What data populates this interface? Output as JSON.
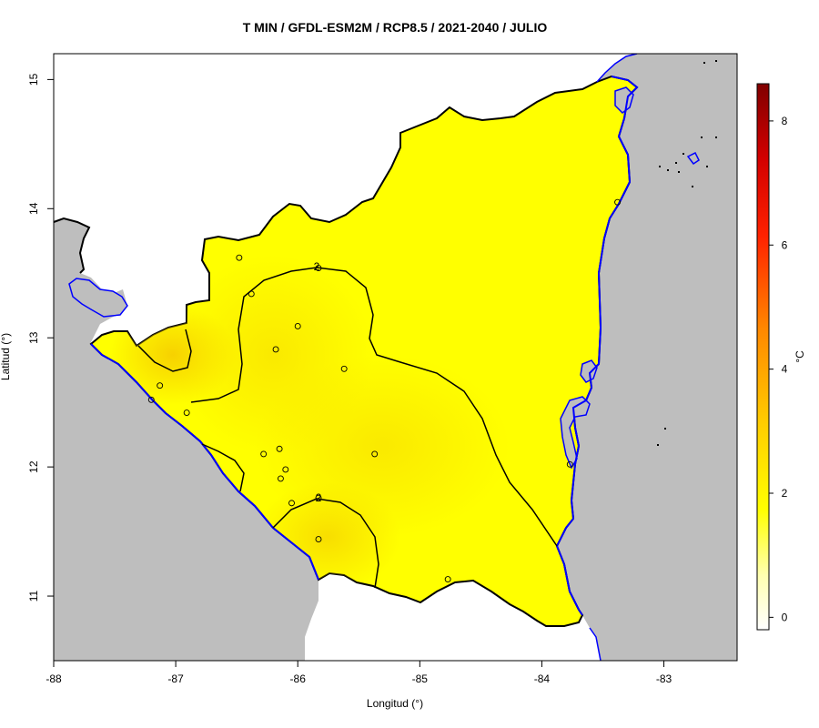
{
  "title": "T MIN / GFDL-ESM2M / RCP8.5 / 2021-2040 / JULIO",
  "xlabel": "Longitud (°)",
  "ylabel": "Latitud (°)",
  "x_ticks": [
    "-88",
    "-87",
    "-86",
    "-85",
    "-84",
    "-83"
  ],
  "y_ticks": [
    "11",
    "12",
    "13",
    "14",
    "15"
  ],
  "colorbar": {
    "unit": "°C",
    "ticks": [
      "0",
      "2",
      "4",
      "6",
      "8"
    ],
    "range": [
      -0.2,
      8.6
    ]
  },
  "contour_labels": [
    "2",
    "2"
  ],
  "colors": {
    "ocean": "#bebebe",
    "land": "#ffff00",
    "warm_core": "#f7d800",
    "water_border": "#0000ff",
    "lake": "#b0b4d0"
  },
  "chart_data": {
    "type": "heatmap",
    "variable": "T MIN",
    "xlim": [
      -88,
      -82.4
    ],
    "ylim": [
      10.5,
      15.2
    ],
    "contour_levels": [
      2
    ],
    "stations": [
      {
        "lon": -86.48,
        "lat": 13.62
      },
      {
        "lon": -86.38,
        "lat": 13.34
      },
      {
        "lon": -85.83,
        "lat": 13.54
      },
      {
        "lon": -86.0,
        "lat": 13.09
      },
      {
        "lon": -86.18,
        "lat": 12.91
      },
      {
        "lon": -85.62,
        "lat": 12.76
      },
      {
        "lon": -87.13,
        "lat": 12.63
      },
      {
        "lon": -87.2,
        "lat": 12.52
      },
      {
        "lon": -86.91,
        "lat": 12.42
      },
      {
        "lon": -86.28,
        "lat": 12.1
      },
      {
        "lon": -86.15,
        "lat": 12.14
      },
      {
        "lon": -86.1,
        "lat": 11.98
      },
      {
        "lon": -86.14,
        "lat": 11.91
      },
      {
        "lon": -86.05,
        "lat": 11.72
      },
      {
        "lon": -85.83,
        "lat": 11.76
      },
      {
        "lon": -85.83,
        "lat": 11.44
      },
      {
        "lon": -85.37,
        "lat": 12.1
      },
      {
        "lon": -84.77,
        "lat": 11.13
      },
      {
        "lon": -83.77,
        "lat": 12.02
      },
      {
        "lon": -83.38,
        "lat": 14.05
      }
    ]
  }
}
